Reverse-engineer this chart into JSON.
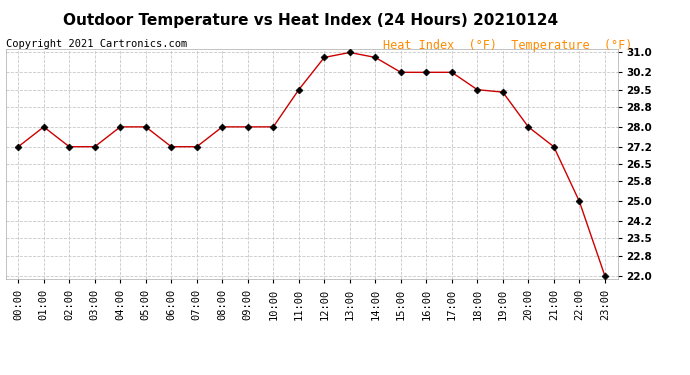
{
  "title": "Outdoor Temperature vs Heat Index (24 Hours) 20210124",
  "copyright": "Copyright 2021 Cartronics.com",
  "legend_heat": "Heat Index",
  "legend_temp": "Temperature",
  "legend_unit": "(°F)",
  "legend_color": "#ff8c00",
  "hours": [
    "00:00",
    "01:00",
    "02:00",
    "03:00",
    "04:00",
    "05:00",
    "06:00",
    "07:00",
    "08:00",
    "09:00",
    "10:00",
    "11:00",
    "12:00",
    "13:00",
    "14:00",
    "15:00",
    "16:00",
    "17:00",
    "18:00",
    "19:00",
    "20:00",
    "21:00",
    "22:00",
    "23:00"
  ],
  "temperature": [
    27.2,
    28.0,
    27.2,
    27.2,
    28.0,
    28.0,
    27.2,
    27.2,
    28.0,
    28.0,
    28.0,
    29.5,
    30.8,
    31.0,
    30.8,
    30.2,
    30.2,
    30.2,
    29.5,
    29.4,
    28.0,
    27.2,
    25.0,
    22.0
  ],
  "line_color": "#cc0000",
  "marker_color": "#000000",
  "marker_size": 3.5,
  "ylim_min": 21.85,
  "ylim_max": 31.15,
  "yticks": [
    22.0,
    22.8,
    23.5,
    24.2,
    25.0,
    25.8,
    26.5,
    27.2,
    28.0,
    28.8,
    29.5,
    30.2,
    31.0
  ],
  "background_color": "#ffffff",
  "grid_color": "#c8c8c8",
  "title_fontsize": 11,
  "copyright_fontsize": 7.5,
  "legend_fontsize": 8.5,
  "tick_fontsize": 7.5,
  "linewidth": 1.0
}
